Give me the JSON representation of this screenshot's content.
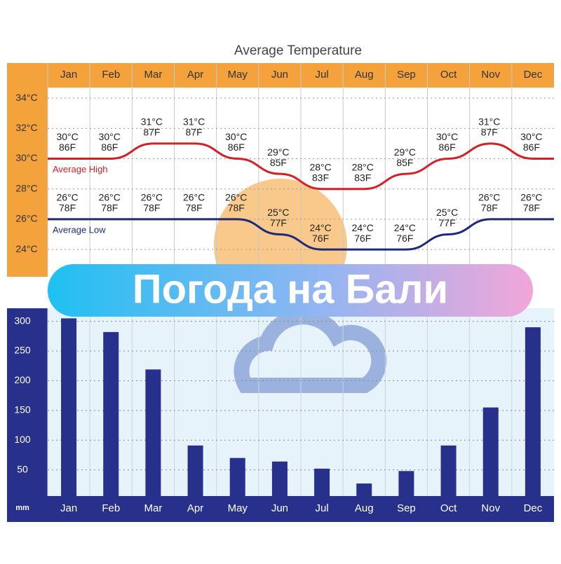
{
  "banner": "Погода на Бали",
  "chart_data": [
    {
      "type": "line",
      "title": "Average Temperature",
      "categories": [
        "Jan",
        "Feb",
        "Mar",
        "Apr",
        "May",
        "Jun",
        "Jul",
        "Aug",
        "Sep",
        "Oct",
        "Nov",
        "Dec"
      ],
      "series": [
        {
          "name": "Average High",
          "color": "#d42027",
          "values": [
            30,
            30,
            31,
            31,
            30,
            29,
            28,
            28,
            29,
            30,
            31,
            30
          ],
          "value_labels": [
            [
              "30°C",
              "86F"
            ],
            [
              "30°C",
              "86F"
            ],
            [
              "31°C",
              "87F"
            ],
            [
              "31°C",
              "87F"
            ],
            [
              "30°C",
              "86F"
            ],
            [
              "29°C",
              "85F"
            ],
            [
              "28°C",
              "83F"
            ],
            [
              "28°C",
              "83F"
            ],
            [
              "29°C",
              "85F"
            ],
            [
              "30°C",
              "86F"
            ],
            [
              "31°C",
              "87F"
            ],
            [
              "30°C",
              "86F"
            ]
          ]
        },
        {
          "name": "Average Low",
          "color": "#1d2a7a",
          "values": [
            26,
            26,
            26,
            26,
            26,
            25,
            24,
            24,
            24,
            25,
            26,
            26
          ],
          "value_labels": [
            [
              "26°C",
              "78F"
            ],
            [
              "26°C",
              "78F"
            ],
            [
              "26°C",
              "78F"
            ],
            [
              "26°C",
              "78F"
            ],
            [
              "26°C",
              "78F"
            ],
            [
              "25°C",
              "77F"
            ],
            [
              "24°C",
              "76F"
            ],
            [
              "24°C",
              "76F"
            ],
            [
              "24°C",
              "76F"
            ],
            [
              "25°C",
              "77F"
            ],
            [
              "26°C",
              "78F"
            ],
            [
              "26°C",
              "78F"
            ]
          ]
        }
      ],
      "ylim": [
        22.2,
        34.7
      ],
      "yticks": [
        {
          "value": 24,
          "label": "24°C"
        },
        {
          "value": 26,
          "label": "26°C"
        },
        {
          "value": 28,
          "label": "28°C"
        },
        {
          "value": 30,
          "label": "30°C"
        },
        {
          "value": 32,
          "label": "32°C"
        },
        {
          "value": 34,
          "label": "34°C"
        }
      ],
      "grid": true
    },
    {
      "type": "bar",
      "y_label": "mm",
      "categories": [
        "Jan",
        "Feb",
        "Mar",
        "Apr",
        "May",
        "Jun",
        "Jul",
        "Aug",
        "Sep",
        "Oct",
        "Nov",
        "Dec"
      ],
      "values": [
        305,
        282,
        219,
        91,
        70,
        64,
        52,
        27,
        48,
        91,
        155,
        290
      ],
      "color": "#27308a",
      "ylim": [
        0,
        322
      ],
      "yticks": [
        50,
        100,
        150,
        200,
        250,
        300
      ],
      "grid": true
    }
  ]
}
